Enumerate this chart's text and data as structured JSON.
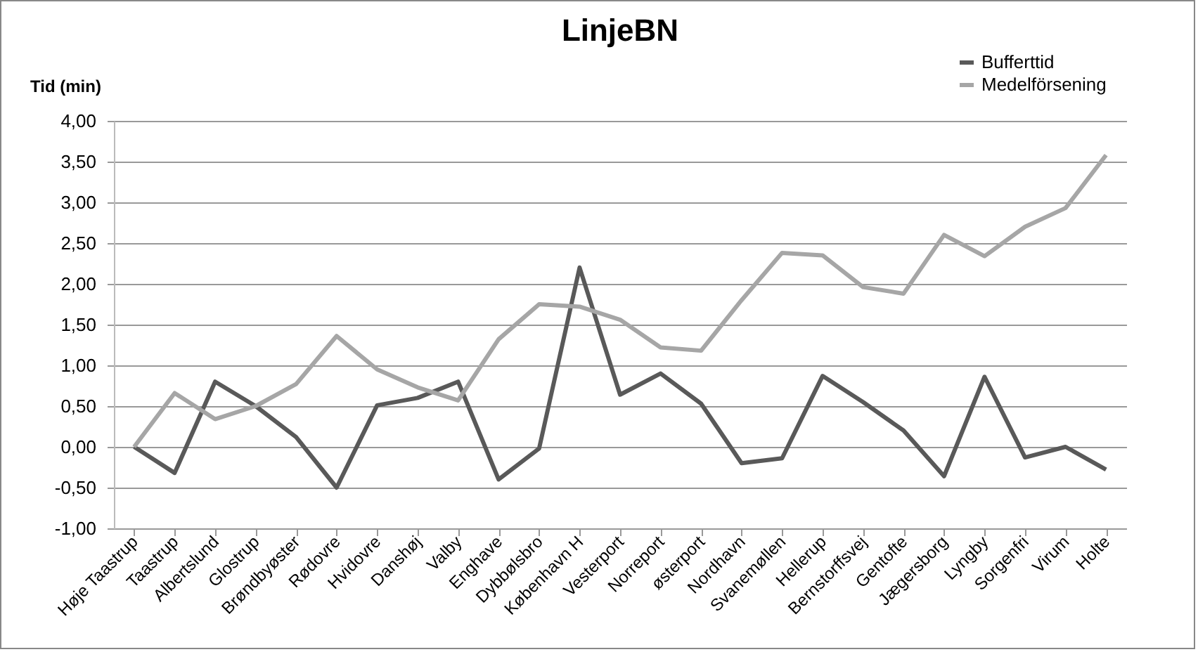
{
  "chart_data": {
    "type": "line",
    "title": "LinjeBN",
    "ylabel": "Tid (min)",
    "categories": [
      "Høje Taastrup",
      "Taastrup",
      "Albertslund",
      "Glostrup",
      "Brøndbyøster",
      "Rødovre",
      "Hvidovre",
      "Danshøj",
      "Valby",
      "Enghave",
      "Dybbølsbro",
      "København H",
      "Vesterport",
      "Norreport",
      "østerport",
      "Nordhavn",
      "Svanemøllen",
      "Hellerup",
      "Bernstorffsvej",
      "Gentofte",
      "Jægersborg",
      "Lyngby",
      "Sorgenfri",
      "Virum",
      "Holte"
    ],
    "series": [
      {
        "name": "Bufferttid",
        "color": "#595959",
        "values": [
          0,
          -0.32,
          0.8,
          0.5,
          0.12,
          -0.5,
          0.51,
          0.6,
          0.8,
          -0.4,
          -0.02,
          2.2,
          0.64,
          0.9,
          0.53,
          -0.2,
          -0.14,
          0.87,
          0.55,
          0.2,
          -0.36,
          0.86,
          -0.13,
          0,
          -0.28
        ]
      },
      {
        "name": "Medelförsening",
        "color": "#a6a6a6",
        "values": [
          0,
          0.66,
          0.34,
          0.5,
          0.77,
          1.36,
          0.95,
          0.73,
          0.57,
          1.32,
          1.75,
          1.72,
          1.56,
          1.22,
          1.18,
          1.8,
          2.38,
          2.35,
          1.96,
          1.88,
          2.6,
          2.34,
          2.7,
          2.93,
          3.58
        ]
      }
    ],
    "ylim": [
      -1,
      4
    ],
    "yticks": [
      {
        "value": -1,
        "label": "-1,00"
      },
      {
        "value": -0.5,
        "label": "-0,50"
      },
      {
        "value": 0,
        "label": "0,00"
      },
      {
        "value": 0.5,
        "label": "0,50"
      },
      {
        "value": 1,
        "label": "1,00"
      },
      {
        "value": 1.5,
        "label": "1,50"
      },
      {
        "value": 2,
        "label": "2,00"
      },
      {
        "value": 2.5,
        "label": "2,50"
      },
      {
        "value": 3,
        "label": "3,00"
      },
      {
        "value": 3.5,
        "label": "3,50"
      },
      {
        "value": 4,
        "label": "4,00"
      }
    ],
    "grid": "y",
    "legend": "top right",
    "marker": "none",
    "line_style": "solid"
  }
}
